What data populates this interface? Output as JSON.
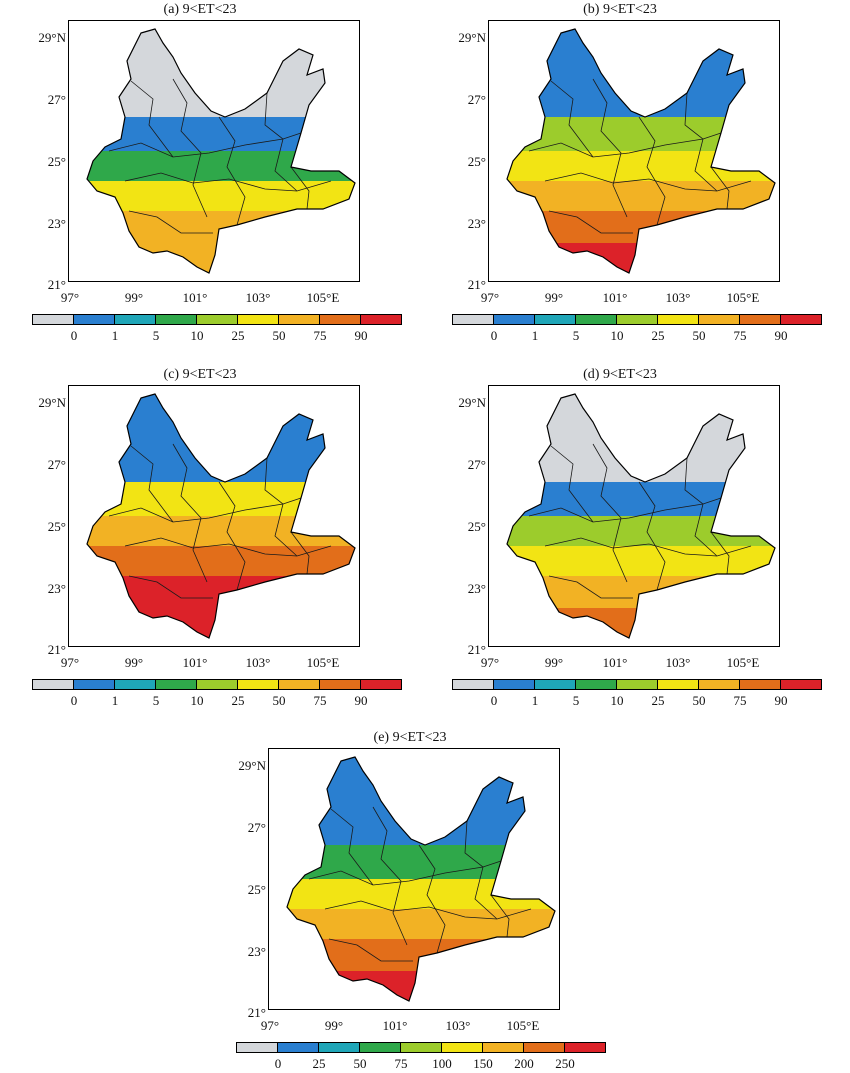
{
  "panels": [
    {
      "title": "(a) 9<ET<23",
      "legend_ticks": [
        "0",
        "1",
        "5",
        "10",
        "25",
        "50",
        "75",
        "90"
      ],
      "colors": [
        "#d4d7db",
        "#2a7fd0",
        "#1fa6b8",
        "#2fa84a",
        "#9ccc2c",
        "#f2e414",
        "#f2b224",
        "#e26e1a",
        "#dc2229"
      ],
      "fill": [
        "#d4d7db",
        "#2a7fd0",
        "#2fa84a",
        "#f2e414",
        "#f2b224"
      ]
    },
    {
      "title": "(b) 9<ET<23",
      "legend_ticks": [
        "0",
        "1",
        "5",
        "10",
        "25",
        "50",
        "75",
        "90"
      ],
      "colors": [
        "#d4d7db",
        "#2a7fd0",
        "#1fa6b8",
        "#2fa84a",
        "#9ccc2c",
        "#f2e414",
        "#f2b224",
        "#e26e1a",
        "#dc2229"
      ],
      "fill": [
        "#2a7fd0",
        "#9ccc2c",
        "#f2e414",
        "#f2b224",
        "#e26e1a",
        "#dc2229"
      ]
    },
    {
      "title": "(c) 9<ET<23",
      "legend_ticks": [
        "0",
        "1",
        "5",
        "10",
        "25",
        "50",
        "75",
        "90"
      ],
      "colors": [
        "#d4d7db",
        "#2a7fd0",
        "#1fa6b8",
        "#2fa84a",
        "#9ccc2c",
        "#f2e414",
        "#f2b224",
        "#e26e1a",
        "#dc2229"
      ],
      "fill": [
        "#2a7fd0",
        "#f2e414",
        "#f2b224",
        "#e26e1a",
        "#dc2229"
      ]
    },
    {
      "title": "(d) 9<ET<23",
      "legend_ticks": [
        "0",
        "1",
        "5",
        "10",
        "25",
        "50",
        "75",
        "90"
      ],
      "colors": [
        "#d4d7db",
        "#2a7fd0",
        "#1fa6b8",
        "#2fa84a",
        "#9ccc2c",
        "#f2e414",
        "#f2b224",
        "#e26e1a",
        "#dc2229"
      ],
      "fill": [
        "#d4d7db",
        "#2a7fd0",
        "#9ccc2c",
        "#f2e414",
        "#f2b224",
        "#e26e1a"
      ]
    },
    {
      "title": "(e) 9<ET<23",
      "legend_ticks": [
        "0",
        "25",
        "50",
        "75",
        "100",
        "150",
        "200",
        "250"
      ],
      "colors": [
        "#d4d7db",
        "#2a7fd0",
        "#1fa6b8",
        "#2fa84a",
        "#9ccc2c",
        "#f2e414",
        "#f2b224",
        "#e26e1a",
        "#dc2229"
      ],
      "fill": [
        "#2a7fd0",
        "#2fa84a",
        "#f2e414",
        "#f2b224",
        "#e26e1a",
        "#dc2229"
      ]
    }
  ],
  "lat_labels": [
    "29°N",
    "27°",
    "25°",
    "23°",
    "21°"
  ],
  "lon_labels": [
    "97°",
    "99°",
    "101°",
    "103°",
    "105°E"
  ]
}
